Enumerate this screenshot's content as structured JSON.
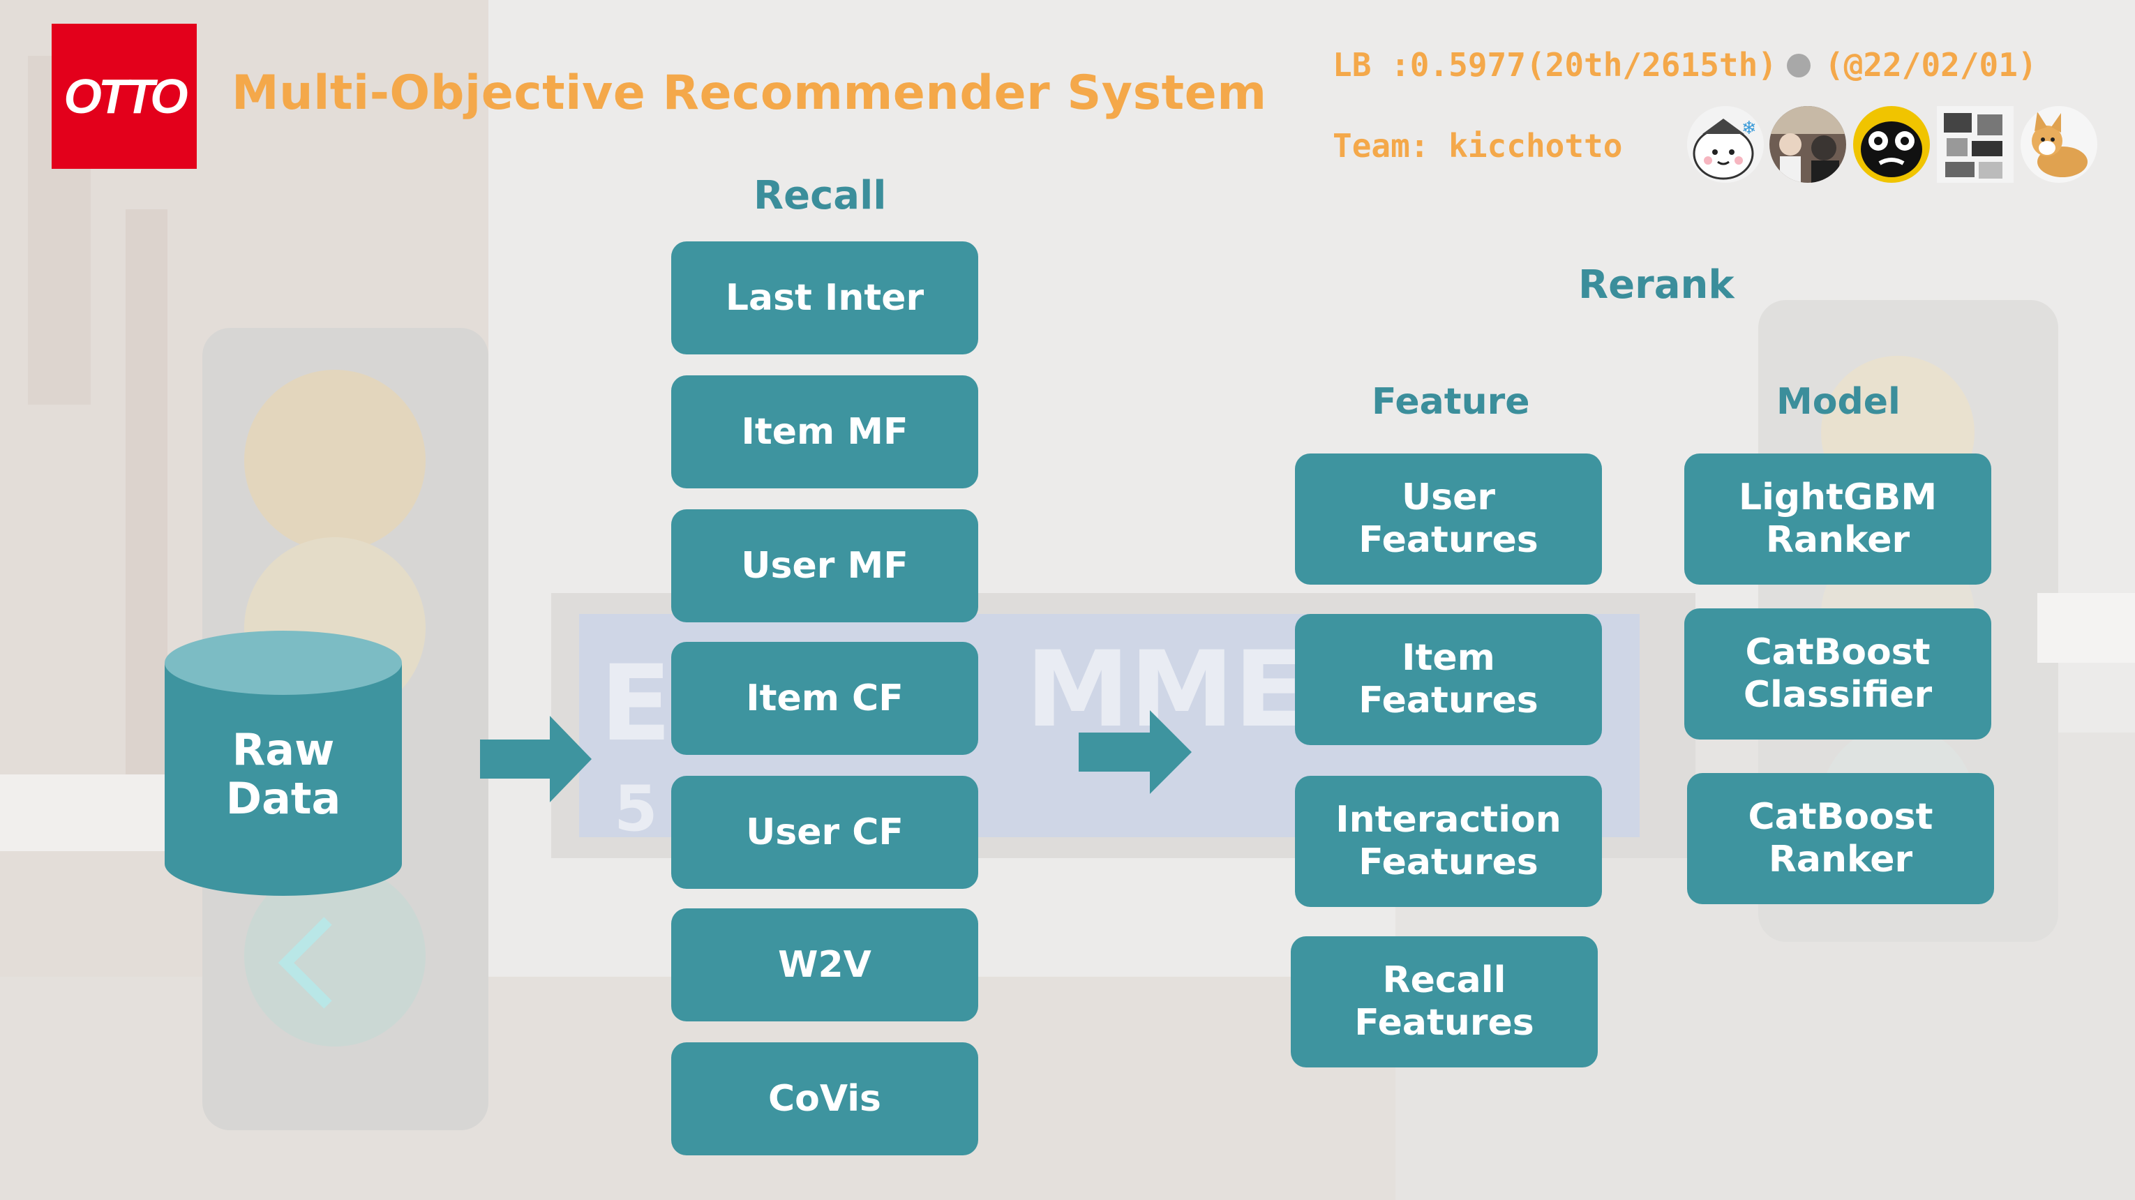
{
  "logo": {
    "text": "OTTO"
  },
  "header": {
    "title": "Multi-Objective Recommender System",
    "lb_score": "LB :0.5977(20th/2615th)",
    "lb_date": "(@22/02/01)",
    "team": "Team: kicchotto"
  },
  "colors": {
    "box": "#3e949f",
    "heading": "#3b8e9b",
    "accent": "#f4a84a",
    "logo": "#e3001b"
  },
  "source": {
    "label_line1": "Raw",
    "label_line2": "Data"
  },
  "recall": {
    "title": "Recall",
    "items": [
      "Last Inter",
      "Item MF",
      "User MF",
      "Item CF",
      "User CF",
      "W2V",
      "CoVis"
    ]
  },
  "rerank": {
    "title": "Rerank",
    "feature_title": "Feature",
    "model_title": "Model",
    "features": [
      {
        "line1": "User",
        "line2": "Features"
      },
      {
        "line1": "Item",
        "line2": "Features"
      },
      {
        "line1": "Interaction",
        "line2": "Features"
      },
      {
        "line1": "Recall",
        "line2": "Features"
      }
    ],
    "models": [
      {
        "line1": "LightGBM",
        "line2": "Ranker"
      },
      {
        "line1": "CatBoost",
        "line2": "Classifier"
      },
      {
        "line1": "CatBoost",
        "line2": "Ranker"
      }
    ]
  }
}
